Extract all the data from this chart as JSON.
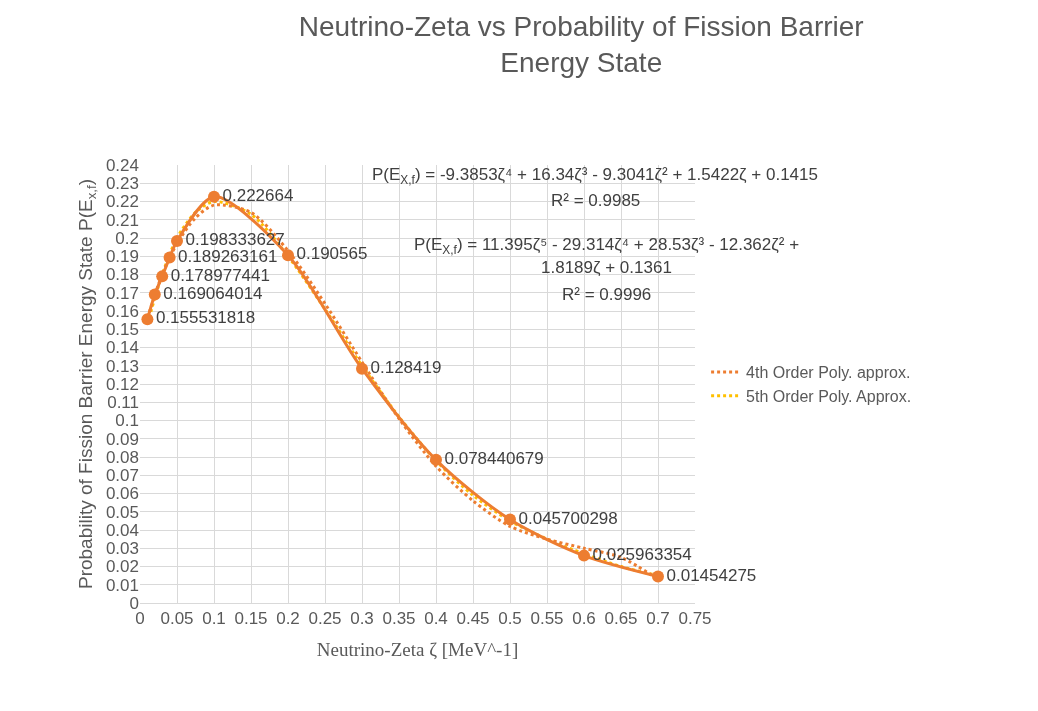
{
  "chart_data": {
    "type": "line",
    "title": "Neutrino-Zeta vs Probability of Fission Barrier Energy State",
    "xlabel": "Neutrino-Zeta ζ [MeV^-1]",
    "ylabel": "Probability of Fission Barrier Energy State P(E$_{x,f}$)",
    "xlim": [
      0,
      0.75
    ],
    "xticks": [
      0,
      0.05,
      0.1,
      0.15,
      0.2,
      0.25,
      0.3,
      0.35,
      0.4,
      0.45,
      0.5,
      0.55,
      0.6,
      0.65,
      0.7,
      0.75
    ],
    "ylim": [
      0,
      0.24
    ],
    "yticks": [
      0,
      0.01,
      0.02,
      0.03,
      0.04,
      0.05,
      0.06,
      0.07,
      0.08,
      0.09,
      0.1,
      0.11,
      0.12,
      0.13,
      0.14,
      0.15,
      0.16,
      0.17,
      0.18,
      0.19,
      0.2,
      0.21,
      0.22,
      0.23,
      0.24
    ],
    "grid": true,
    "legend": "right",
    "series": [
      {
        "color": "#ed7d31",
        "marker": "circle",
        "line_style": "solid",
        "data_labels": true,
        "x": [
          0.01,
          0.02,
          0.03,
          0.04,
          0.05,
          0.1,
          0.2,
          0.3,
          0.4,
          0.5,
          0.6,
          0.7
        ],
        "values": [
          0.155531818,
          0.169064014,
          0.178977441,
          0.189263161,
          0.198333627,
          0.222664,
          0.190565,
          0.128419,
          0.078440679,
          0.045700298,
          0.025963354,
          0.01454275
        ]
      },
      {
        "name": "4th Order Poly. approx.",
        "color": "#ed7d31",
        "marker": "none",
        "line_style": "dotted",
        "x": [
          0.01,
          0.03,
          0.05,
          0.075,
          0.1,
          0.15,
          0.2,
          0.25,
          0.3,
          0.35,
          0.4,
          0.45,
          0.5,
          0.55,
          0.6,
          0.65,
          0.7
        ],
        "values": [
          0.156,
          0.18,
          0.197,
          0.211,
          0.218,
          0.214,
          0.193,
          0.164,
          0.132,
          0.101,
          0.075,
          0.056,
          0.042,
          0.035,
          0.03,
          0.025,
          0.013
        ]
      },
      {
        "name": "5th Order Poly. Approx.",
        "color": "#ffc000",
        "marker": "none",
        "line_style": "dotted",
        "x": [
          0.01,
          0.03,
          0.05,
          0.075,
          0.1,
          0.15,
          0.2,
          0.25,
          0.3,
          0.35,
          0.4,
          0.45,
          0.5,
          0.55,
          0.6,
          0.65,
          0.7
        ],
        "values": [
          0.153,
          0.18,
          0.2,
          0.214,
          0.22,
          0.213,
          0.19,
          0.161,
          0.13,
          0.102,
          0.078,
          0.059,
          0.045,
          0.035,
          0.027,
          0.02,
          0.015
        ]
      }
    ],
    "annotations": [
      "P(E$_{X,f}$) = -9.3853ζ⁴ + 16.34ζ³ - 9.3041ζ² + 1.5422ζ + 0.1415",
      "R² = 0.9985",
      "P(E$_{X,f}$) = 11.395ζ⁵ - 29.314ζ⁴ + 28.53ζ³ - 12.362ζ² +",
      "1.8189ζ + 0.1361",
      "R² = 0.9996"
    ]
  }
}
